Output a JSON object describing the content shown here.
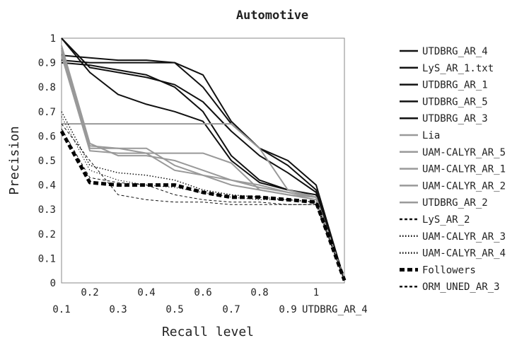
{
  "chart_data": {
    "type": "line",
    "title": "Automotive",
    "xlabel": "Recall level",
    "ylabel": "Precision",
    "xlim": [
      0.1,
      1.1
    ],
    "ylim": [
      0,
      1
    ],
    "grid": false,
    "legend_position": "right",
    "x_ticks_top_row": [
      "0.2",
      "0.4",
      "0.6",
      "0.8",
      "1"
    ],
    "x_ticks_bottom_row": [
      "0.1",
      "0.3",
      "0.5",
      "0.7",
      "0.9"
    ],
    "x_tick_extra_label": "UTDBRG_AR_4",
    "y_ticks": [
      "0",
      "0.1",
      "0.2",
      "0.3",
      "0.4",
      "0.5",
      "0.6",
      "0.7",
      "0.8",
      "0.9",
      "1"
    ],
    "x": [
      0.1,
      0.2,
      0.3,
      0.4,
      0.5,
      0.6,
      0.7,
      0.8,
      0.9,
      1.0,
      1.1
    ],
    "series": [
      {
        "name": "UTDBRG_AR_4",
        "color": "#111111",
        "dash": "solid",
        "width": 2,
        "values": [
          0.91,
          0.9,
          0.9,
          0.9,
          0.9,
          0.85,
          0.66,
          0.55,
          0.5,
          0.4,
          0.01
        ]
      },
      {
        "name": "LyS_AR_1.txt",
        "color": "#111111",
        "dash": "solid",
        "width": 2,
        "values": [
          0.93,
          0.92,
          0.91,
          0.91,
          0.9,
          0.8,
          0.65,
          0.55,
          0.48,
          0.38,
          0.01
        ]
      },
      {
        "name": "UTDBRG_AR_1",
        "color": "#111111",
        "dash": "solid",
        "width": 2,
        "values": [
          1.0,
          0.88,
          0.86,
          0.84,
          0.81,
          0.74,
          0.62,
          0.52,
          0.45,
          0.37,
          0.01
        ]
      },
      {
        "name": "UTDBRG_AR_5",
        "color": "#111111",
        "dash": "solid",
        "width": 2,
        "values": [
          0.9,
          0.89,
          0.87,
          0.85,
          0.8,
          0.7,
          0.52,
          0.42,
          0.38,
          0.36,
          0.01
        ]
      },
      {
        "name": "UTDBRG_AR_3",
        "color": "#111111",
        "dash": "solid",
        "width": 2,
        "values": [
          1.0,
          0.86,
          0.77,
          0.73,
          0.7,
          0.66,
          0.5,
          0.41,
          0.38,
          0.35,
          0.01
        ]
      },
      {
        "name": "Lia",
        "color": "#999999",
        "dash": "solid",
        "width": 2,
        "values": [
          0.65,
          0.65,
          0.65,
          0.65,
          0.65,
          0.65,
          0.65,
          0.55,
          0.38,
          0.35,
          0.01
        ]
      },
      {
        "name": "UAM-CALYR_AR_5",
        "color": "#999999",
        "dash": "solid",
        "width": 2,
        "values": [
          0.95,
          0.55,
          0.55,
          0.53,
          0.53,
          0.53,
          0.49,
          0.38,
          0.36,
          0.35,
          0.01
        ]
      },
      {
        "name": "UAM-CALYR_AR_1",
        "color": "#999999",
        "dash": "solid",
        "width": 2,
        "values": [
          0.97,
          0.57,
          0.52,
          0.52,
          0.5,
          0.46,
          0.42,
          0.4,
          0.37,
          0.35,
          0.01
        ]
      },
      {
        "name": "UAM-CALYR_AR_2",
        "color": "#999999",
        "dash": "solid",
        "width": 2,
        "values": [
          0.96,
          0.56,
          0.55,
          0.55,
          0.48,
          0.44,
          0.42,
          0.39,
          0.37,
          0.35,
          0.01
        ]
      },
      {
        "name": "UTDBRG_AR_2",
        "color": "#999999",
        "dash": "solid",
        "width": 2,
        "values": [
          0.93,
          0.54,
          0.53,
          0.53,
          0.46,
          0.44,
          0.4,
          0.38,
          0.36,
          0.34,
          0.01
        ]
      },
      {
        "name": "LyS_AR_2",
        "color": "#111111",
        "dash": "dashed",
        "width": 1,
        "values": [
          0.65,
          0.5,
          0.36,
          0.34,
          0.33,
          0.33,
          0.32,
          0.32,
          0.32,
          0.32,
          0.01
        ]
      },
      {
        "name": "UAM-CALYR_AR_3",
        "color": "#111111",
        "dash": "dotted",
        "width": 1.5,
        "values": [
          0.7,
          0.48,
          0.45,
          0.44,
          0.42,
          0.38,
          0.36,
          0.35,
          0.34,
          0.33,
          0.01
        ]
      },
      {
        "name": "UAM-CALYR_AR_4",
        "color": "#111111",
        "dash": "dotted",
        "width": 1,
        "values": [
          0.68,
          0.46,
          0.42,
          0.4,
          0.39,
          0.37,
          0.35,
          0.34,
          0.34,
          0.33,
          0.01
        ]
      },
      {
        "name": "Followers",
        "color": "#000000",
        "dash": "heavy-dashed",
        "width": 5,
        "values": [
          0.62,
          0.41,
          0.4,
          0.4,
          0.4,
          0.37,
          0.35,
          0.35,
          0.34,
          0.33,
          0.01
        ]
      },
      {
        "name": "ORM_UNED_AR_3",
        "color": "#111111",
        "dash": "dashed",
        "width": 1,
        "values": [
          0.63,
          0.43,
          0.41,
          0.4,
          0.36,
          0.34,
          0.33,
          0.33,
          0.32,
          0.32,
          0.01
        ]
      }
    ]
  }
}
